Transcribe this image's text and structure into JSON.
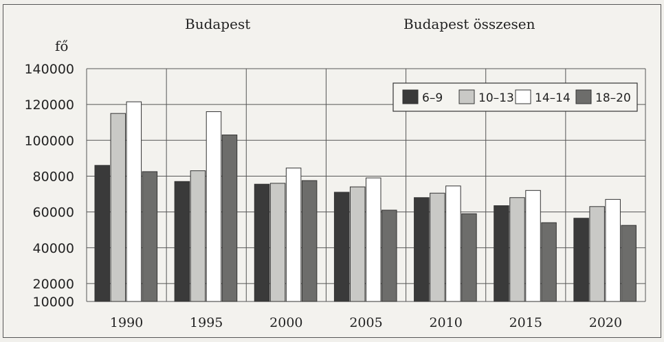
{
  "chart_data": {
    "type": "bar",
    "title": "Budapest",
    "subtitle": "Budapest összesen",
    "ylabel": "fő",
    "xlabel": "",
    "categories": [
      "1990",
      "1995",
      "2000",
      "2005",
      "2010",
      "2015",
      "2020"
    ],
    "ylim": [
      10000,
      140000
    ],
    "yticks": [
      "10000",
      "20000",
      "40000",
      "60000",
      "80000",
      "100000",
      "120000",
      "140000"
    ],
    "grid": true,
    "legend_position": "top-right",
    "series": [
      {
        "name": "6–9",
        "color": "#3a3a3a",
        "values": [
          86000,
          77000,
          75500,
          71000,
          68000,
          63500,
          56500
        ]
      },
      {
        "name": "10–13",
        "color": "#c9c9c6",
        "values": [
          115000,
          83000,
          76000,
          74000,
          70500,
          68000,
          63000
        ]
      },
      {
        "name": "14–14",
        "color": "#ffffff",
        "values": [
          121500,
          116000,
          84500,
          79000,
          74500,
          72000,
          67000
        ]
      },
      {
        "name": "18–20",
        "color": "#6d6d6b",
        "values": [
          82500,
          103000,
          77500,
          61000,
          59000,
          54000,
          52500
        ]
      }
    ]
  }
}
